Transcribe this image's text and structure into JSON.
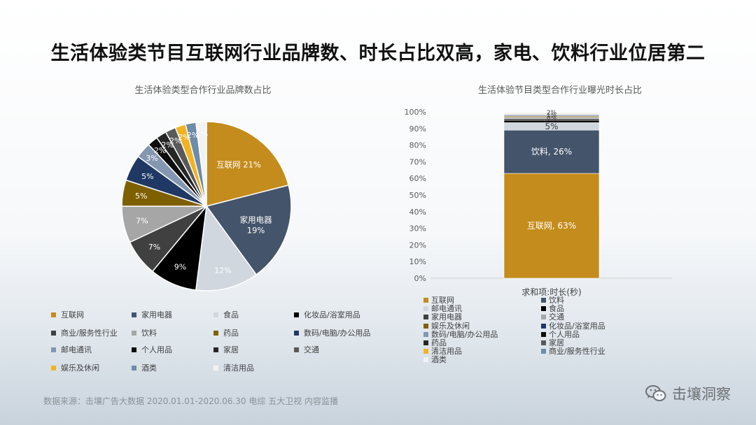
{
  "page": {
    "title": "生活体验类节目互联网行业品牌数、时长占比双高，家电、饮料行业位居第二",
    "source": "数据来源：击壤广告大数据 2020.01.01-2020.06.30 电综 五大卫视 内容监播",
    "watermark": "击壤洞察"
  },
  "icons": {
    "watermark_icon": "wechat-icon"
  },
  "chart_data": [
    {
      "type": "pie",
      "title": "生活体验类型合作行业品牌数占比",
      "legend_position": "bottom",
      "categories": [
        "互联网",
        "家用电器",
        "食品",
        "化妆品/浴室用品",
        "商业/服务性行业",
        "饮料",
        "药品",
        "数码/电脑/办公用品",
        "邮电通讯",
        "个人用品",
        "家居",
        "交通",
        "娱乐及休闲",
        "酒类",
        "清洁用品"
      ],
      "values": [
        21,
        19,
        12,
        9,
        7,
        7,
        5,
        5,
        3,
        2,
        2,
        2,
        2,
        2,
        2
      ],
      "labels": [
        "互联网 21%",
        "家用电器 19%",
        "12%",
        "9%",
        "7%",
        "7%",
        "5%",
        "5%",
        "3%",
        "2%",
        "2%",
        "2%",
        "2%",
        "2%",
        "2%"
      ],
      "colors": [
        "#C48C1C",
        "#44546A",
        "#D0D7DE",
        "#000000",
        "#404040",
        "#A6A6A6",
        "#7F6000",
        "#203864",
        "#8497B0",
        "#0D0D0D",
        "#262626",
        "#595959",
        "#F0B323",
        "#6E8BA8",
        "#F2F2F2"
      ]
    },
    {
      "type": "bar",
      "subtype": "stacked-100",
      "title": "生活体验节目类型合作行业曝光时长占比",
      "xlabel": "求和项:时长(秒)",
      "ylim": [
        0,
        100
      ],
      "yticks": [
        "0%",
        "10%",
        "20%",
        "30%",
        "40%",
        "50%",
        "60%",
        "70%",
        "80%",
        "90%",
        "100%"
      ],
      "grid": false,
      "legend_position": "bottom",
      "series": [
        {
          "name": "互联网",
          "value": 63,
          "label": "互联网, 63%",
          "color": "#C48C1C"
        },
        {
          "name": "饮料",
          "value": 26,
          "label": "饮料, 26%",
          "color": "#44546A"
        },
        {
          "name": "邮电通讯",
          "value": 4.5,
          "label": "5%",
          "color": "#D0D7DE"
        },
        {
          "name": "食品",
          "value": 1.5,
          "label": "",
          "color": "#000000"
        },
        {
          "name": "家用电器",
          "value": 1,
          "label": "",
          "color": "#404040"
        },
        {
          "name": "交通",
          "value": 0.8,
          "label": "",
          "color": "#A6A6A6"
        },
        {
          "name": "娱乐及休闲",
          "value": 0.6,
          "label": "",
          "color": "#7F6000"
        },
        {
          "name": "化妆品/浴室用品",
          "value": 0.5,
          "label": "",
          "color": "#203864"
        },
        {
          "name": "数码/电脑/办公用品",
          "value": 0.4,
          "label": "",
          "color": "#8497B0"
        },
        {
          "name": "个人用品",
          "value": 0.3,
          "label": "",
          "color": "#0D0D0D"
        },
        {
          "name": "药品",
          "value": 0.3,
          "label": "",
          "color": "#262626"
        },
        {
          "name": "家居",
          "value": 0.3,
          "label": "",
          "color": "#595959"
        },
        {
          "name": "清洁用品",
          "value": 0.3,
          "label": "",
          "color": "#F0B323"
        },
        {
          "name": "商业/服务性行业",
          "value": 0.3,
          "label": "",
          "color": "#6E8BA8"
        },
        {
          "name": "酒类",
          "value": 0.2,
          "label": "",
          "color": "#F2F2F2"
        }
      ],
      "top_labels": [
        "2%",
        "1%",
        "0%"
      ]
    }
  ]
}
